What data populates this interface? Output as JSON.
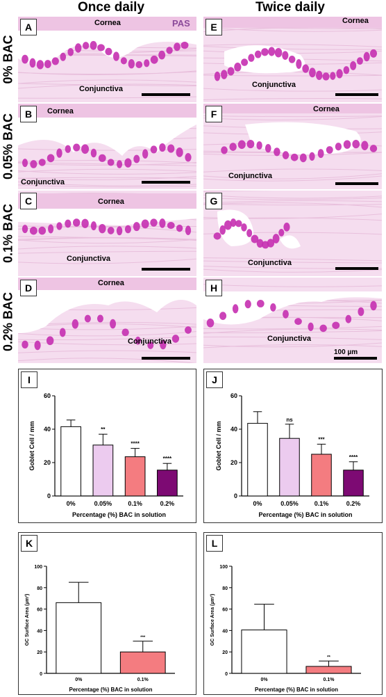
{
  "columns": [
    "Once daily",
    "Twice daily"
  ],
  "rows": [
    "0% BAC",
    "0.05% BAC",
    "0.1% BAC",
    "0.2% BAC"
  ],
  "images": [
    {
      "letter": "A",
      "labels": [
        "Cornea",
        "Conjunctiva"
      ],
      "stain": "PAS"
    },
    {
      "letter": "E",
      "labels": [
        "Cornea",
        "Conjunctiva"
      ]
    },
    {
      "letter": "B",
      "labels": [
        "Cornea",
        "Conjunctiva"
      ]
    },
    {
      "letter": "F",
      "labels": [
        "Cornea",
        "Conjunctiva"
      ]
    },
    {
      "letter": "C",
      "labels": [
        "Cornea",
        "Conjunctiva"
      ]
    },
    {
      "letter": "G",
      "labels": [
        "Conjunctiva"
      ]
    },
    {
      "letter": "D",
      "labels": [
        "Cornea",
        "Conjunctiva"
      ]
    },
    {
      "letter": "H",
      "labels": [
        "Conjunctiva"
      ],
      "scale": "100 µm"
    }
  ],
  "colors": {
    "bar_0": "#ffffff",
    "bar_005": "#eccbef",
    "bar_01": "#f47c80",
    "bar_02": "#7d0a73",
    "tissue": "#f2cfe8",
    "goblet": "#c52fb0"
  },
  "chart_data": [
    {
      "letter": "I",
      "type": "bar",
      "categories": [
        "0%",
        "0.05%",
        "0.1%",
        "0.2%"
      ],
      "values": [
        41.5,
        30.5,
        23.5,
        15.5
      ],
      "errors": [
        4,
        6.5,
        5,
        4
      ],
      "significance": [
        "",
        "**",
        "****",
        "****"
      ],
      "xlabel": "Percentage (%) BAC in solution",
      "ylabel": "Goblet Cell / mm",
      "ylim": [
        0,
        60
      ],
      "yticks": [
        0,
        20,
        40,
        60
      ]
    },
    {
      "letter": "J",
      "type": "bar",
      "categories": [
        "0%",
        "0.05%",
        "0.1%",
        "0.2%"
      ],
      "values": [
        43.5,
        34.5,
        25,
        15.5
      ],
      "errors": [
        7,
        8.5,
        6,
        5
      ],
      "significance": [
        "",
        "ns",
        "***",
        "****"
      ],
      "xlabel": "Percentage (%) BAC in solution",
      "ylabel": "Goblet Cell / mm",
      "ylim": [
        0,
        60
      ],
      "yticks": [
        0,
        20,
        40,
        60
      ]
    },
    {
      "letter": "K",
      "type": "bar",
      "categories": [
        "0%",
        "0.1%"
      ],
      "values": [
        66,
        20
      ],
      "errors": [
        19,
        10
      ],
      "significance": [
        "",
        "***"
      ],
      "xlabel": "Percentage (%) BAC in solution",
      "ylabel": "GC Surface Area (µm²)",
      "ylim": [
        0,
        100
      ],
      "yticks": [
        0,
        20,
        40,
        60,
        80,
        100
      ]
    },
    {
      "letter": "L",
      "type": "bar",
      "categories": [
        "0%",
        "0.1%"
      ],
      "values": [
        40.5,
        6.5
      ],
      "errors": [
        24,
        5
      ],
      "significance": [
        "",
        "**"
      ],
      "xlabel": "Percentage (%) BAC in solution",
      "ylabel": "GC Surface Area (µm²)",
      "ylim": [
        0,
        100
      ],
      "yticks": [
        0,
        20,
        40,
        60,
        80,
        100
      ]
    }
  ]
}
